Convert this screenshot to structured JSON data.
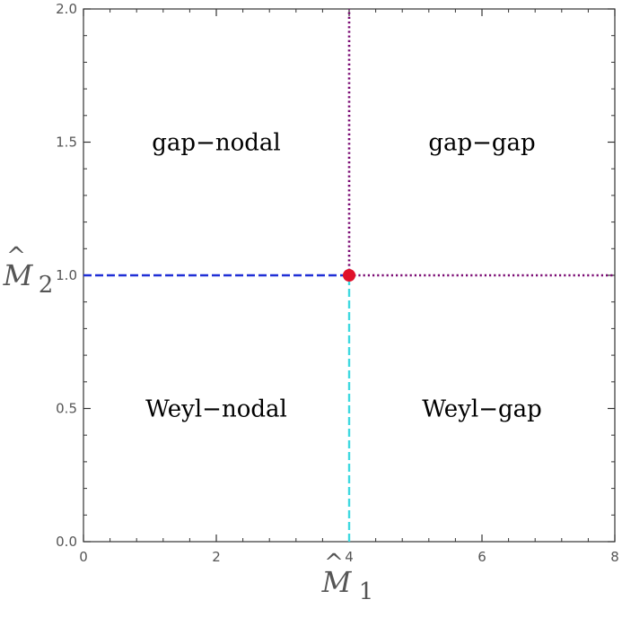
{
  "chart_data": {
    "type": "phase-diagram",
    "xlim": [
      0,
      8
    ],
    "ylim": [
      0,
      2.0
    ],
    "x_ticks": [
      {
        "value": 0,
        "label": "0"
      },
      {
        "value": 2,
        "label": "2"
      },
      {
        "value": 4,
        "label": "4"
      },
      {
        "value": 6,
        "label": "6"
      },
      {
        "value": 8,
        "label": "8"
      }
    ],
    "y_ticks": [
      {
        "value": 0.0,
        "label": "0.0"
      },
      {
        "value": 0.5,
        "label": "0.5"
      },
      {
        "value": 1.0,
        "label": "1.0"
      },
      {
        "value": 1.5,
        "label": "1.5"
      },
      {
        "value": 2.0,
        "label": "2.0"
      }
    ],
    "x_minor_step": 0.4,
    "y_minor_step": 0.1,
    "xlabel_base": "M",
    "xlabel_sub": "1",
    "ylabel_base": "M",
    "ylabel_sub": "2",
    "grid": false,
    "boundaries": [
      {
        "x": [
          0,
          4
        ],
        "y": [
          1,
          1
        ],
        "color": "#1f2fd6",
        "style": "dashed"
      },
      {
        "x": [
          4,
          8
        ],
        "y": [
          1,
          1
        ],
        "color": "#7a0a73",
        "style": "dotted"
      },
      {
        "x": [
          4,
          4
        ],
        "y": [
          1,
          2
        ],
        "color": "#7a0a73",
        "style": "dotted"
      },
      {
        "x": [
          4,
          4
        ],
        "y": [
          0,
          1
        ],
        "color": "#3fd9e0",
        "style": "dashed"
      }
    ],
    "critical_point": {
      "x": 4,
      "y": 1,
      "color": "#e0102a"
    },
    "regions": [
      {
        "text": "gap−nodal",
        "x": 2.0,
        "y": 1.5
      },
      {
        "text": "gap−gap",
        "x": 6.0,
        "y": 1.5
      },
      {
        "text": "Weyl−nodal",
        "x": 2.0,
        "y": 0.5
      },
      {
        "text": "Weyl−gap",
        "x": 6.0,
        "y": 0.5
      }
    ]
  }
}
